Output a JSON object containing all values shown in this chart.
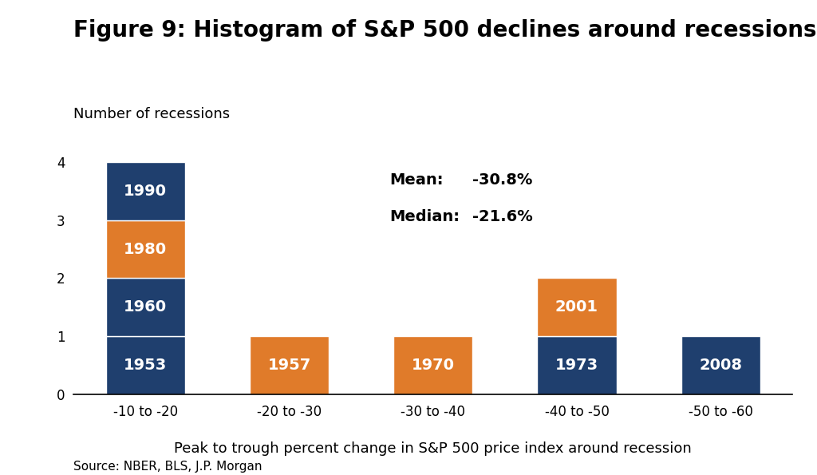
{
  "title": "Figure 9: Histogram of S&P 500 declines around recessions",
  "ylabel": "Number of recessions",
  "xlabel": "Peak to trough percent change in S&P 500 price index around recession",
  "source": "Source: NBER, BLS, J.P. Morgan",
  "categories": [
    "-10 to -20",
    "-20 to -30",
    "-30 to -40",
    "-40 to -50",
    "-50 to -60"
  ],
  "bars": [
    {
      "category": "-10 to -20",
      "segments": [
        {
          "label": "1953",
          "value": 1,
          "color": "#1F3F6E"
        },
        {
          "label": "1960",
          "value": 1,
          "color": "#1F3F6E"
        },
        {
          "label": "1980",
          "value": 1,
          "color": "#E07B2A"
        },
        {
          "label": "1990",
          "value": 1,
          "color": "#1F3F6E"
        }
      ]
    },
    {
      "category": "-20 to -30",
      "segments": [
        {
          "label": "1957",
          "value": 1,
          "color": "#E07B2A"
        }
      ]
    },
    {
      "category": "-30 to -40",
      "segments": [
        {
          "label": "1970",
          "value": 1,
          "color": "#E07B2A"
        }
      ]
    },
    {
      "category": "-40 to -50",
      "segments": [
        {
          "label": "1973",
          "value": 1,
          "color": "#1F3F6E"
        },
        {
          "label": "2001",
          "value": 1,
          "color": "#E07B2A"
        }
      ]
    },
    {
      "category": "-50 to -60",
      "segments": [
        {
          "label": "2008",
          "value": 1,
          "color": "#1F3F6E"
        }
      ]
    }
  ],
  "mean_label": "Mean:",
  "mean_value": "    -30.8%",
  "median_label": "Median:",
  "median_value": " -21.6%",
  "ylim": [
    0,
    4.5
  ],
  "yticks": [
    0,
    1,
    2,
    3,
    4
  ],
  "dark_blue": "#1F3F6E",
  "orange": "#E07B2A",
  "bar_width": 0.55,
  "background_color": "#FFFFFF",
  "bar_label_fontsize": 14,
  "title_fontsize": 20,
  "ylabel_fontsize": 13,
  "xlabel_fontsize": 13,
  "tick_fontsize": 12,
  "annotation_fontsize": 14,
  "source_fontsize": 11
}
